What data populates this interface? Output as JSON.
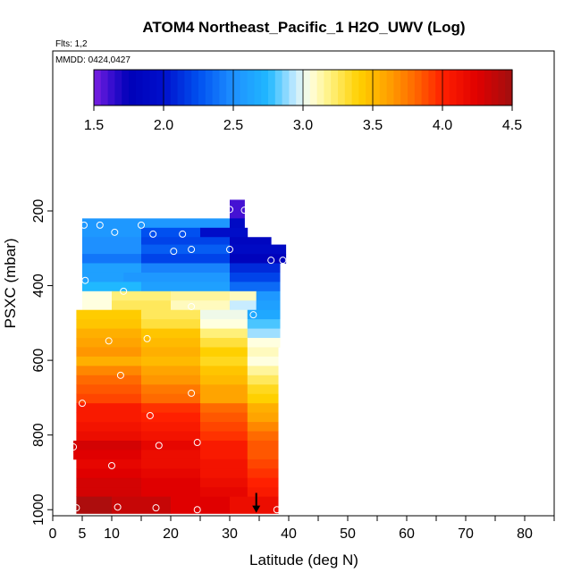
{
  "chart_data": {
    "type": "heatmap",
    "title": "ATOM4 Northeast_Pacific_1 H2O_UWV (Log)",
    "flights_label": "Flts: 1,2",
    "mmdd_label": "MMDD: 0424,0427",
    "xlabel": "Latitude (deg N)",
    "ylabel": "PSXC (mbar)",
    "xlim": [
      0,
      85
    ],
    "ylim": [
      1010,
      100
    ],
    "x_ticks": [
      0,
      5,
      10,
      20,
      30,
      40,
      50,
      60,
      70,
      80
    ],
    "x_minor_ticks": [
      15,
      25,
      35,
      45,
      55,
      65,
      75,
      85
    ],
    "y_ticks": [
      200,
      400,
      600,
      800,
      1000
    ],
    "colorbar": {
      "min": 1.5,
      "max": 4.5,
      "ticks": [
        1.5,
        2.0,
        2.5,
        3.0,
        3.5,
        4.0,
        4.5
      ],
      "stops": [
        [
          1.5,
          "#7a1fe0"
        ],
        [
          1.62,
          "#3a0fd0"
        ],
        [
          1.75,
          "#0000b8"
        ],
        [
          2.0,
          "#0010cc"
        ],
        [
          2.25,
          "#0050f0"
        ],
        [
          2.5,
          "#1e90ff"
        ],
        [
          2.75,
          "#20b8ff"
        ],
        [
          2.95,
          "#c8ecff"
        ],
        [
          3.05,
          "#ffffe0"
        ],
        [
          3.2,
          "#fff07a"
        ],
        [
          3.4,
          "#ffd000"
        ],
        [
          3.6,
          "#ffa400"
        ],
        [
          3.8,
          "#ff6a00"
        ],
        [
          4.0,
          "#ff2000"
        ],
        [
          4.25,
          "#e00000"
        ],
        [
          4.5,
          "#a01010"
        ]
      ]
    },
    "rows": [
      {
        "p_top": 170,
        "p_bottom": 220,
        "cells": [
          {
            "x0": 30,
            "x1": 32.5,
            "v": 1.6
          }
        ]
      },
      {
        "p_top": 220,
        "p_bottom": 245,
        "cells": [
          {
            "x0": 5,
            "x1": 30,
            "v": 2.55
          },
          {
            "x0": 30,
            "x1": 32.5,
            "v": 1.9
          }
        ]
      },
      {
        "p_top": 245,
        "p_bottom": 270,
        "cells": [
          {
            "x0": 5,
            "x1": 15,
            "v": 2.55
          },
          {
            "x0": 15,
            "x1": 25,
            "v": 2.25
          },
          {
            "x0": 25,
            "x1": 33,
            "v": 1.95
          }
        ]
      },
      {
        "p_top": 270,
        "p_bottom": 290,
        "cells": [
          {
            "x0": 5,
            "x1": 15,
            "v": 2.5
          },
          {
            "x0": 15,
            "x1": 30,
            "v": 2.2
          },
          {
            "x0": 30,
            "x1": 37,
            "v": 1.85
          }
        ]
      },
      {
        "p_top": 290,
        "p_bottom": 315,
        "cells": [
          {
            "x0": 5,
            "x1": 15,
            "v": 2.5
          },
          {
            "x0": 15,
            "x1": 30,
            "v": 2.3
          },
          {
            "x0": 30,
            "x1": 39.5,
            "v": 1.9
          }
        ]
      },
      {
        "p_top": 315,
        "p_bottom": 340,
        "cells": [
          {
            "x0": 5,
            "x1": 15,
            "v": 2.4
          },
          {
            "x0": 15,
            "x1": 30,
            "v": 2.2
          },
          {
            "x0": 30,
            "x1": 39.5,
            "v": 1.8
          }
        ]
      },
      {
        "p_top": 340,
        "p_bottom": 365,
        "cells": [
          {
            "x0": 5,
            "x1": 15,
            "v": 2.6
          },
          {
            "x0": 15,
            "x1": 30,
            "v": 2.45
          },
          {
            "x0": 30,
            "x1": 38.5,
            "v": 2.1
          }
        ]
      },
      {
        "p_top": 365,
        "p_bottom": 390,
        "cells": [
          {
            "x0": 5,
            "x1": 12,
            "v": 2.6
          },
          {
            "x0": 12,
            "x1": 30,
            "v": 2.55
          },
          {
            "x0": 30,
            "x1": 38.5,
            "v": 2.2
          }
        ]
      },
      {
        "p_top": 390,
        "p_bottom": 415,
        "cells": [
          {
            "x0": 5,
            "x1": 15,
            "v": 2.75
          },
          {
            "x0": 15,
            "x1": 30,
            "v": 2.6
          },
          {
            "x0": 30,
            "x1": 38.5,
            "v": 2.35
          }
        ]
      },
      {
        "p_top": 415,
        "p_bottom": 440,
        "cells": [
          {
            "x0": 5,
            "x1": 10,
            "v": 3.05
          },
          {
            "x0": 10,
            "x1": 20,
            "v": 3.2
          },
          {
            "x0": 20,
            "x1": 30,
            "v": 3.15
          },
          {
            "x0": 30,
            "x1": 34.5,
            "v": 3.1
          },
          {
            "x0": 34.5,
            "x1": 38.5,
            "v": 2.55
          }
        ]
      },
      {
        "p_top": 440,
        "p_bottom": 465,
        "cells": [
          {
            "x0": 5,
            "x1": 10,
            "v": 3.05
          },
          {
            "x0": 10,
            "x1": 20,
            "v": 3.25
          },
          {
            "x0": 20,
            "x1": 30,
            "v": 3.1
          },
          {
            "x0": 30,
            "x1": 34.5,
            "v": 2.95
          },
          {
            "x0": 34.5,
            "x1": 38.5,
            "v": 2.6
          }
        ]
      },
      {
        "p_top": 465,
        "p_bottom": 490,
        "cells": [
          {
            "x0": 4,
            "x1": 15,
            "v": 3.42
          },
          {
            "x0": 15,
            "x1": 25,
            "v": 3.25
          },
          {
            "x0": 25,
            "x1": 33,
            "v": 3.02
          },
          {
            "x0": 33,
            "x1": 38.5,
            "v": 2.65
          }
        ]
      },
      {
        "p_top": 490,
        "p_bottom": 515,
        "cells": [
          {
            "x0": 4,
            "x1": 15,
            "v": 3.45
          },
          {
            "x0": 15,
            "x1": 25,
            "v": 3.3
          },
          {
            "x0": 25,
            "x1": 33,
            "v": 3.05
          },
          {
            "x0": 33,
            "x1": 38.5,
            "v": 2.8
          }
        ]
      },
      {
        "p_top": 515,
        "p_bottom": 540,
        "cells": [
          {
            "x0": 4,
            "x1": 15,
            "v": 3.55
          },
          {
            "x0": 15,
            "x1": 25,
            "v": 3.45
          },
          {
            "x0": 25,
            "x1": 33,
            "v": 3.2
          },
          {
            "x0": 33,
            "x1": 38.5,
            "v": 2.9
          }
        ]
      },
      {
        "p_top": 540,
        "p_bottom": 565,
        "cells": [
          {
            "x0": 4,
            "x1": 15,
            "v": 3.6
          },
          {
            "x0": 15,
            "x1": 25,
            "v": 3.5
          },
          {
            "x0": 25,
            "x1": 33,
            "v": 3.3
          },
          {
            "x0": 33,
            "x1": 38.5,
            "v": 3.05
          }
        ]
      },
      {
        "p_top": 565,
        "p_bottom": 590,
        "cells": [
          {
            "x0": 4,
            "x1": 15,
            "v": 3.65
          },
          {
            "x0": 15,
            "x1": 25,
            "v": 3.55
          },
          {
            "x0": 25,
            "x1": 33,
            "v": 3.4
          },
          {
            "x0": 33,
            "x1": 38.2,
            "v": 3.1
          }
        ]
      },
      {
        "p_top": 590,
        "p_bottom": 615,
        "cells": [
          {
            "x0": 4,
            "x1": 15,
            "v": 3.55
          },
          {
            "x0": 15,
            "x1": 25,
            "v": 3.5
          },
          {
            "x0": 25,
            "x1": 33,
            "v": 3.35
          },
          {
            "x0": 33,
            "x1": 38.2,
            "v": 3.05
          }
        ]
      },
      {
        "p_top": 615,
        "p_bottom": 640,
        "cells": [
          {
            "x0": 4,
            "x1": 15,
            "v": 3.7
          },
          {
            "x0": 15,
            "x1": 25,
            "v": 3.6
          },
          {
            "x0": 25,
            "x1": 33,
            "v": 3.45
          },
          {
            "x0": 33,
            "x1": 38.2,
            "v": 3.15
          }
        ]
      },
      {
        "p_top": 640,
        "p_bottom": 665,
        "cells": [
          {
            "x0": 4,
            "x1": 15,
            "v": 3.8
          },
          {
            "x0": 15,
            "x1": 25,
            "v": 3.65
          },
          {
            "x0": 25,
            "x1": 33,
            "v": 3.5
          },
          {
            "x0": 33,
            "x1": 38.2,
            "v": 3.25
          }
        ]
      },
      {
        "p_top": 665,
        "p_bottom": 690,
        "cells": [
          {
            "x0": 4,
            "x1": 15,
            "v": 3.85
          },
          {
            "x0": 15,
            "x1": 25,
            "v": 3.75
          },
          {
            "x0": 25,
            "x1": 33,
            "v": 3.6
          },
          {
            "x0": 33,
            "x1": 38.2,
            "v": 3.35
          }
        ]
      },
      {
        "p_top": 690,
        "p_bottom": 715,
        "cells": [
          {
            "x0": 4,
            "x1": 15,
            "v": 3.9
          },
          {
            "x0": 15,
            "x1": 25,
            "v": 3.8
          },
          {
            "x0": 25,
            "x1": 33,
            "v": 3.6
          },
          {
            "x0": 33,
            "x1": 38.2,
            "v": 3.4
          }
        ]
      },
      {
        "p_top": 715,
        "p_bottom": 740,
        "cells": [
          {
            "x0": 4,
            "x1": 15,
            "v": 4.05
          },
          {
            "x0": 15,
            "x1": 25,
            "v": 3.95
          },
          {
            "x0": 25,
            "x1": 33,
            "v": 3.8
          },
          {
            "x0": 33,
            "x1": 38.2,
            "v": 3.55
          }
        ]
      },
      {
        "p_top": 740,
        "p_bottom": 765,
        "cells": [
          {
            "x0": 4,
            "x1": 15,
            "v": 4.05
          },
          {
            "x0": 15,
            "x1": 25,
            "v": 4.0
          },
          {
            "x0": 25,
            "x1": 33,
            "v": 3.85
          },
          {
            "x0": 33,
            "x1": 38.2,
            "v": 3.6
          }
        ]
      },
      {
        "p_top": 765,
        "p_bottom": 790,
        "cells": [
          {
            "x0": 4,
            "x1": 15,
            "v": 4.1
          },
          {
            "x0": 15,
            "x1": 25,
            "v": 4.05
          },
          {
            "x0": 25,
            "x1": 33,
            "v": 3.9
          },
          {
            "x0": 33,
            "x1": 38.2,
            "v": 3.7
          }
        ]
      },
      {
        "p_top": 790,
        "p_bottom": 815,
        "cells": [
          {
            "x0": 4,
            "x1": 15,
            "v": 4.15
          },
          {
            "x0": 15,
            "x1": 25,
            "v": 4.1
          },
          {
            "x0": 25,
            "x1": 33,
            "v": 3.95
          },
          {
            "x0": 33,
            "x1": 38.2,
            "v": 3.8
          }
        ]
      },
      {
        "p_top": 815,
        "p_bottom": 840,
        "cells": [
          {
            "x0": 3.5,
            "x1": 15,
            "v": 4.3
          },
          {
            "x0": 15,
            "x1": 25,
            "v": 4.2
          },
          {
            "x0": 25,
            "x1": 33,
            "v": 4.05
          },
          {
            "x0": 33,
            "x1": 38.2,
            "v": 3.85
          }
        ]
      },
      {
        "p_top": 840,
        "p_bottom": 865,
        "cells": [
          {
            "x0": 3.5,
            "x1": 15,
            "v": 4.25
          },
          {
            "x0": 15,
            "x1": 25,
            "v": 4.15
          },
          {
            "x0": 25,
            "x1": 33,
            "v": 4.05
          },
          {
            "x0": 33,
            "x1": 38.2,
            "v": 3.85
          }
        ]
      },
      {
        "p_top": 865,
        "p_bottom": 890,
        "cells": [
          {
            "x0": 4,
            "x1": 15,
            "v": 4.2
          },
          {
            "x0": 15,
            "x1": 25,
            "v": 4.15
          },
          {
            "x0": 25,
            "x1": 33,
            "v": 4.1
          },
          {
            "x0": 33,
            "x1": 38.2,
            "v": 3.9
          }
        ]
      },
      {
        "p_top": 890,
        "p_bottom": 915,
        "cells": [
          {
            "x0": 4,
            "x1": 15,
            "v": 4.25
          },
          {
            "x0": 15,
            "x1": 25,
            "v": 4.2
          },
          {
            "x0": 25,
            "x1": 33,
            "v": 4.1
          },
          {
            "x0": 33,
            "x1": 38.2,
            "v": 3.95
          }
        ]
      },
      {
        "p_top": 915,
        "p_bottom": 940,
        "cells": [
          {
            "x0": 4,
            "x1": 15,
            "v": 4.3
          },
          {
            "x0": 15,
            "x1": 25,
            "v": 4.25
          },
          {
            "x0": 25,
            "x1": 33,
            "v": 4.15
          },
          {
            "x0": 33,
            "x1": 38.2,
            "v": 4.0
          }
        ]
      },
      {
        "p_top": 940,
        "p_bottom": 965,
        "cells": [
          {
            "x0": 4,
            "x1": 15,
            "v": 4.3
          },
          {
            "x0": 15,
            "x1": 25,
            "v": 4.25
          },
          {
            "x0": 25,
            "x1": 33,
            "v": 4.2
          },
          {
            "x0": 33,
            "x1": 38.2,
            "v": 4.05
          }
        ]
      },
      {
        "p_top": 965,
        "p_bottom": 1010,
        "cells": [
          {
            "x0": 4,
            "x1": 10,
            "v": 4.45
          },
          {
            "x0": 10,
            "x1": 20,
            "v": 4.35
          },
          {
            "x0": 20,
            "x1": 30,
            "v": 4.25
          },
          {
            "x0": 30,
            "x1": 38.2,
            "v": 4.15
          }
        ]
      }
    ],
    "points": [
      {
        "lat": 30,
        "p": 196
      },
      {
        "lat": 32.5,
        "p": 198
      },
      {
        "lat": 5.3,
        "p": 238
      },
      {
        "lat": 8,
        "p": 238
      },
      {
        "lat": 15,
        "p": 238
      },
      {
        "lat": 10.5,
        "p": 257
      },
      {
        "lat": 17,
        "p": 262
      },
      {
        "lat": 22,
        "p": 262
      },
      {
        "lat": 20.5,
        "p": 308
      },
      {
        "lat": 23.5,
        "p": 303
      },
      {
        "lat": 30,
        "p": 303
      },
      {
        "lat": 37,
        "p": 332
      },
      {
        "lat": 39,
        "p": 332
      },
      {
        "lat": 5.5,
        "p": 386
      },
      {
        "lat": 12,
        "p": 415
      },
      {
        "lat": 23.5,
        "p": 456
      },
      {
        "lat": 34,
        "p": 478
      },
      {
        "lat": 9.5,
        "p": 548
      },
      {
        "lat": 16,
        "p": 542
      },
      {
        "lat": 11.5,
        "p": 640
      },
      {
        "lat": 23.5,
        "p": 688
      },
      {
        "lat": 5,
        "p": 715
      },
      {
        "lat": 16.5,
        "p": 748
      },
      {
        "lat": 24.5,
        "p": 820
      },
      {
        "lat": 18,
        "p": 828
      },
      {
        "lat": 3.5,
        "p": 832
      },
      {
        "lat": 10,
        "p": 882
      },
      {
        "lat": 4,
        "p": 995
      },
      {
        "lat": 11,
        "p": 993
      },
      {
        "lat": 17.5,
        "p": 995
      },
      {
        "lat": 24.5,
        "p": 1000
      },
      {
        "lat": 38,
        "p": 1000
      }
    ],
    "arrow": {
      "lat": 34.5,
      "p_from": 955,
      "p_to": 1008
    }
  }
}
